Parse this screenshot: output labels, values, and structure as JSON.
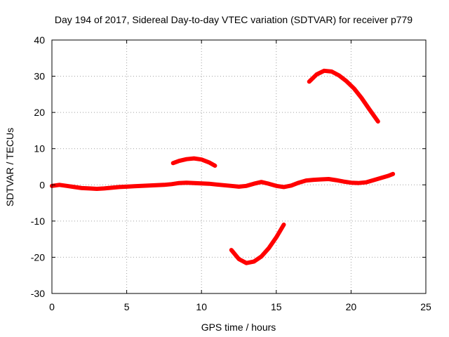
{
  "chart_data": {
    "type": "line",
    "title": "Day 194 of 2017, Sidereal Day-to-day VTEC variation (SDTVAR) for receiver p779",
    "xlabel": "GPS time / hours",
    "ylabel": "SDTVAR / TECUs",
    "xlim": [
      0,
      25
    ],
    "ylim": [
      -30,
      40
    ],
    "xticks": [
      0,
      5,
      10,
      15,
      20,
      25
    ],
    "xtick_labels": [
      "0",
      "5",
      "10",
      "15",
      "20",
      "25"
    ],
    "yticks": [
      -30,
      -20,
      -10,
      0,
      10,
      20,
      30,
      40
    ],
    "ytick_labels": [
      "-30",
      "-20",
      "-10",
      "0",
      "10",
      "20",
      "30",
      "40"
    ],
    "grid": true,
    "legend": "none",
    "color": "#ff0000",
    "series": [
      {
        "name": "baseline",
        "points": [
          [
            0,
            -0.3
          ],
          [
            0.5,
            0
          ],
          [
            1,
            -0.3
          ],
          [
            1.5,
            -0.6
          ],
          [
            2,
            -0.9
          ],
          [
            2.5,
            -1.0
          ],
          [
            3,
            -1.1
          ],
          [
            3.5,
            -1.0
          ],
          [
            4,
            -0.8
          ],
          [
            4.5,
            -0.6
          ],
          [
            5,
            -0.5
          ],
          [
            5.5,
            -0.4
          ],
          [
            6,
            -0.3
          ],
          [
            6.5,
            -0.2
          ],
          [
            7,
            -0.1
          ],
          [
            7.5,
            0.0
          ],
          [
            8,
            0.2
          ],
          [
            8.5,
            0.5
          ],
          [
            9,
            0.6
          ],
          [
            9.5,
            0.5
          ],
          [
            10,
            0.4
          ],
          [
            10.5,
            0.3
          ],
          [
            11,
            0.1
          ],
          [
            11.5,
            -0.1
          ],
          [
            12,
            -0.3
          ],
          [
            12.5,
            -0.5
          ],
          [
            13,
            -0.3
          ],
          [
            13.5,
            0.3
          ],
          [
            14,
            0.8
          ],
          [
            14.5,
            0.3
          ],
          [
            15,
            -0.3
          ],
          [
            15.5,
            -0.6
          ],
          [
            16,
            -0.2
          ],
          [
            16.5,
            0.6
          ],
          [
            17,
            1.2
          ],
          [
            17.5,
            1.4
          ],
          [
            18,
            1.5
          ],
          [
            18.5,
            1.6
          ],
          [
            19,
            1.3
          ],
          [
            19.5,
            0.9
          ],
          [
            20,
            0.6
          ],
          [
            20.5,
            0.5
          ],
          [
            21,
            0.7
          ],
          [
            21.5,
            1.3
          ],
          [
            22,
            1.9
          ],
          [
            22.5,
            2.5
          ],
          [
            22.8,
            3.0
          ]
        ]
      },
      {
        "name": "segment-near-10h",
        "points": [
          [
            8.1,
            6.0
          ],
          [
            8.5,
            6.6
          ],
          [
            9,
            7.1
          ],
          [
            9.5,
            7.3
          ],
          [
            10,
            7.0
          ],
          [
            10.5,
            6.2
          ],
          [
            10.9,
            5.3
          ]
        ]
      },
      {
        "name": "segment-near-13h",
        "points": [
          [
            12.0,
            -18.0
          ],
          [
            12.5,
            -20.5
          ],
          [
            13.0,
            -21.6
          ],
          [
            13.5,
            -21.2
          ],
          [
            14.0,
            -19.8
          ],
          [
            14.5,
            -17.5
          ],
          [
            15.0,
            -14.5
          ],
          [
            15.5,
            -11.0
          ]
        ]
      },
      {
        "name": "segment-near-18h",
        "points": [
          [
            17.2,
            28.5
          ],
          [
            17.7,
            30.5
          ],
          [
            18.2,
            31.5
          ],
          [
            18.7,
            31.3
          ],
          [
            19.2,
            30.2
          ],
          [
            19.7,
            28.6
          ],
          [
            20.2,
            26.6
          ],
          [
            20.7,
            24.0
          ],
          [
            21.2,
            21.0
          ],
          [
            21.8,
            17.5
          ]
        ]
      }
    ]
  }
}
